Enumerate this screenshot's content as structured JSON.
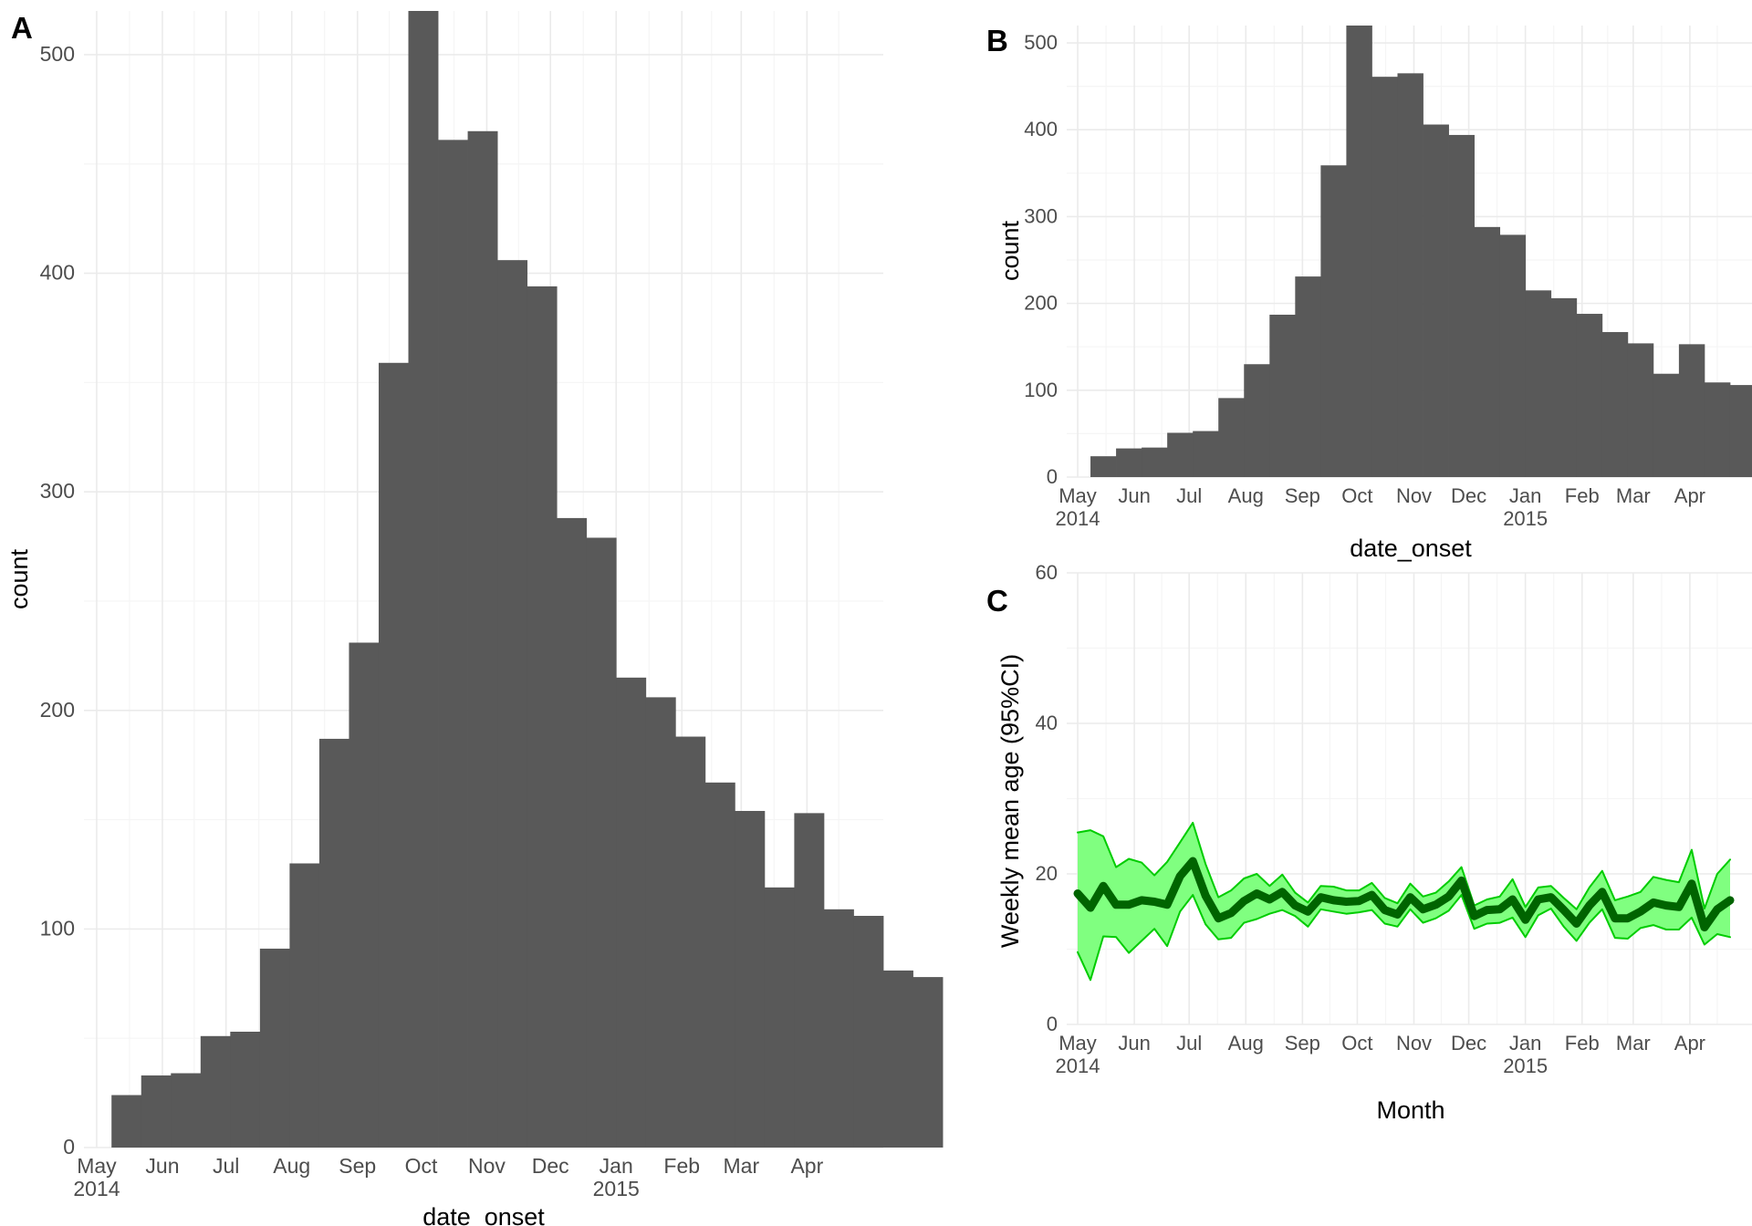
{
  "chart_data": [
    {
      "panel": "A",
      "type": "bar",
      "xlabel": "date_onset",
      "ylabel": "count",
      "ylim": [
        0,
        520
      ],
      "yticks": [
        0,
        100,
        200,
        300,
        400,
        500
      ],
      "xticks": [
        {
          "label": "May",
          "sub": "2014"
        },
        {
          "label": "Jun"
        },
        {
          "label": "Jul"
        },
        {
          "label": "Aug"
        },
        {
          "label": "Sep"
        },
        {
          "label": "Oct"
        },
        {
          "label": "Nov"
        },
        {
          "label": "Dec"
        },
        {
          "label": "Jan",
          "sub": "2015"
        },
        {
          "label": "Feb"
        },
        {
          "label": "Mar"
        },
        {
          "label": "Apr"
        }
      ],
      "bin_width_days": 14,
      "bins_start": "2014-05-08",
      "values": [
        24,
        33,
        34,
        51,
        53,
        91,
        130,
        187,
        231,
        359,
        520,
        461,
        465,
        406,
        394,
        288,
        279,
        215,
        206,
        188,
        167,
        154,
        119,
        153,
        109,
        106,
        81,
        78
      ],
      "grid": true
    },
    {
      "panel": "B",
      "type": "bar",
      "xlabel": "date_onset",
      "ylabel": "count",
      "ylim": [
        0,
        520
      ],
      "yticks": [
        0,
        100,
        200,
        300,
        400,
        500
      ],
      "xticks": [
        {
          "label": "May",
          "sub": "2014"
        },
        {
          "label": "Jun"
        },
        {
          "label": "Jul"
        },
        {
          "label": "Aug"
        },
        {
          "label": "Sep"
        },
        {
          "label": "Oct"
        },
        {
          "label": "Nov"
        },
        {
          "label": "Dec"
        },
        {
          "label": "Jan",
          "sub": "2015"
        },
        {
          "label": "Feb"
        },
        {
          "label": "Mar"
        },
        {
          "label": "Apr"
        }
      ],
      "bin_width_days": 14,
      "bins_start": "2014-05-08",
      "values": [
        24,
        33,
        34,
        51,
        53,
        91,
        130,
        187,
        231,
        359,
        520,
        461,
        465,
        406,
        394,
        288,
        279,
        215,
        206,
        188,
        167,
        154,
        119,
        153,
        109,
        106,
        81,
        78
      ],
      "grid": true
    },
    {
      "panel": "C",
      "type": "line",
      "xlabel": "Month",
      "ylabel": "Weekly mean age (95%CI)",
      "ylim": [
        0,
        60
      ],
      "yticks": [
        0,
        20,
        40,
        60
      ],
      "xticks": [
        {
          "label": "May",
          "sub": "2014"
        },
        {
          "label": "Jun"
        },
        {
          "label": "Jul"
        },
        {
          "label": "Aug"
        },
        {
          "label": "Sep"
        },
        {
          "label": "Oct"
        },
        {
          "label": "Nov"
        },
        {
          "label": "Dec"
        },
        {
          "label": "Jan",
          "sub": "2015"
        },
        {
          "label": "Feb"
        },
        {
          "label": "Mar"
        },
        {
          "label": "Apr"
        }
      ],
      "x_start": "2014-05-01",
      "x_step_days": 7,
      "series": [
        {
          "role": "mean",
          "values": [
            17.4,
            15.5,
            18.4,
            15.9,
            15.9,
            16.5,
            16.3,
            15.9,
            19.7,
            21.7,
            17.1,
            14.1,
            14.8,
            16.4,
            17.4,
            16.6,
            17.6,
            15.8,
            15.0,
            16.9,
            16.5,
            16.3,
            16.4,
            17.2,
            15.2,
            14.6,
            16.9,
            15.3,
            15.9,
            17.0,
            19.1,
            14.4,
            15.2,
            15.3,
            16.6,
            13.9,
            16.6,
            16.9,
            15.2,
            13.4,
            15.8,
            17.6,
            14.1,
            14.1,
            15.0,
            16.2,
            15.8,
            15.6,
            18.7,
            12.9,
            15.3,
            16.5
          ],
          "color": "#006400"
        },
        {
          "role": "upper",
          "values": [
            25.5,
            25.8,
            25.0,
            20.9,
            22.0,
            21.5,
            19.8,
            21.6,
            24.2,
            26.8,
            21.3,
            16.9,
            17.8,
            19.4,
            20.0,
            18.4,
            19.9,
            17.5,
            16.2,
            18.4,
            18.3,
            17.8,
            17.8,
            18.8,
            16.8,
            16.1,
            18.7,
            17.0,
            17.5,
            19.0,
            20.9,
            15.8,
            16.6,
            17.0,
            19.3,
            15.6,
            18.2,
            18.4,
            16.8,
            15.3,
            18.2,
            20.4,
            16.5,
            17.0,
            17.6,
            19.6,
            19.2,
            18.9,
            23.2,
            15.4,
            20.0,
            21.9
          ],
          "color": "#00cc00"
        },
        {
          "role": "lower",
          "values": [
            9.6,
            5.9,
            11.7,
            11.6,
            9.5,
            11.1,
            12.7,
            10.4,
            15.0,
            17.2,
            13.3,
            11.3,
            11.5,
            13.5,
            14.0,
            14.7,
            15.2,
            14.4,
            13.0,
            15.3,
            15.0,
            14.7,
            14.9,
            15.2,
            13.4,
            13.0,
            15.3,
            13.5,
            14.1,
            15.1,
            17.2,
            12.7,
            13.4,
            13.5,
            14.2,
            11.6,
            14.5,
            15.4,
            13.0,
            11.1,
            13.5,
            15.3,
            11.5,
            11.4,
            12.8,
            13.2,
            12.6,
            12.6,
            14.2,
            10.6,
            12.0,
            11.6
          ],
          "color": "#00cc00"
        }
      ],
      "band_color": "#80ff80",
      "grid": true
    }
  ],
  "panel_labels": {
    "a": "A",
    "b": "B",
    "c": "C"
  },
  "colors": {
    "bar": "#595959",
    "grid_major": "#ebebeb",
    "grid_minor": "#f5f5f5"
  }
}
